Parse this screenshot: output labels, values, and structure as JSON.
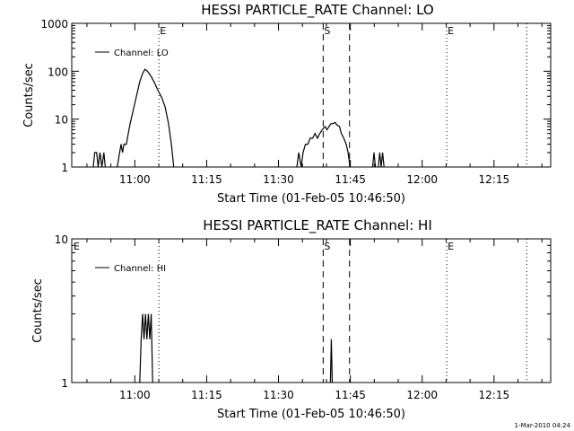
{
  "figure": {
    "timestamp": "1-Mar-2010 04:24"
  },
  "chart_data": [
    {
      "type": "line",
      "title": "HESSI PARTICLE_RATE Channel: LO",
      "xlabel": "Start Time (01-Feb-05 10:46:50)",
      "ylabel": "Counts/sec",
      "x_unit": "minutes after 10:46:50",
      "xlim": [
        0,
        100
      ],
      "ylim": [
        1,
        1000
      ],
      "yscale": "log",
      "x_ticks": [
        {
          "x": 13.17,
          "label": "11:00"
        },
        {
          "x": 28.17,
          "label": "11:15"
        },
        {
          "x": 43.17,
          "label": "11:30"
        },
        {
          "x": 58.17,
          "label": "11:45"
        },
        {
          "x": 73.17,
          "label": "12:00"
        },
        {
          "x": 88.17,
          "label": "12:15"
        }
      ],
      "y_ticks": [
        {
          "y": 1,
          "label": "1"
        },
        {
          "y": 10,
          "label": "10"
        },
        {
          "y": 100,
          "label": "100"
        },
        {
          "y": 1000,
          "label": "1000"
        }
      ],
      "legend": {
        "position": "top-left",
        "entries": [
          "Channel: LO"
        ]
      },
      "markers": [
        {
          "x": 18.2,
          "style": "dotted",
          "label": "E"
        },
        {
          "x": 52.5,
          "style": "dashed",
          "label": "S"
        },
        {
          "x": 58.0,
          "style": "dashed",
          "label": ""
        },
        {
          "x": 78.3,
          "style": "dotted",
          "label": "E"
        },
        {
          "x": 95.0,
          "style": "dotted",
          "label": ""
        }
      ],
      "series": [
        {
          "name": "Channel: LO",
          "segments": [
            [
              [
                4.5,
                1
              ],
              [
                4.8,
                2
              ],
              [
                5.2,
                2
              ],
              [
                5.5,
                1
              ],
              [
                5.9,
                2
              ],
              [
                6.3,
                1
              ],
              [
                6.7,
                2
              ],
              [
                7.0,
                1
              ]
            ],
            [
              [
                9.5,
                1
              ],
              [
                10.0,
                2
              ],
              [
                10.3,
                3
              ],
              [
                10.6,
                2
              ],
              [
                10.9,
                3
              ],
              [
                11.4,
                3
              ],
              [
                11.8,
                5
              ],
              [
                12.2,
                8
              ],
              [
                12.8,
                15
              ],
              [
                13.5,
                30
              ],
              [
                14.2,
                60
              ],
              [
                14.8,
                90
              ],
              [
                15.3,
                110
              ],
              [
                15.8,
                100
              ],
              [
                16.5,
                80
              ],
              [
                17.2,
                60
              ],
              [
                18.0,
                40
              ],
              [
                18.8,
                28
              ],
              [
                19.5,
                18
              ],
              [
                20.2,
                8
              ],
              [
                20.8,
                3
              ],
              [
                21.3,
                1
              ]
            ],
            [
              [
                47.0,
                1
              ],
              [
                47.4,
                2
              ],
              [
                47.9,
                1
              ],
              [
                48.3,
                2
              ],
              [
                48.8,
                3
              ],
              [
                49.3,
                3
              ],
              [
                49.8,
                4
              ],
              [
                50.3,
                4
              ],
              [
                50.8,
                5
              ],
              [
                51.3,
                4
              ],
              [
                51.8,
                5
              ],
              [
                52.3,
                6
              ],
              [
                52.9,
                7
              ],
              [
                53.3,
                6
              ],
              [
                53.7,
                7
              ],
              [
                54.1,
                8
              ],
              [
                54.5,
                8
              ],
              [
                55.0,
                8.5
              ],
              [
                55.4,
                7.5
              ],
              [
                55.9,
                7
              ],
              [
                56.3,
                5
              ],
              [
                56.8,
                4
              ],
              [
                57.3,
                3
              ],
              [
                57.7,
                2
              ],
              [
                58.1,
                1
              ]
            ],
            [
              [
                62.8,
                1
              ],
              [
                63.1,
                2
              ],
              [
                63.4,
                1
              ]
            ],
            [
              [
                64.0,
                1
              ],
              [
                64.3,
                2
              ],
              [
                64.6,
                1
              ],
              [
                64.9,
                2
              ],
              [
                65.2,
                1
              ]
            ]
          ]
        }
      ]
    },
    {
      "type": "line",
      "title": "HESSI PARTICLE_RATE Channel: HI",
      "xlabel": "Start Time (01-Feb-05 10:46:50)",
      "ylabel": "Counts/sec",
      "x_unit": "minutes after 10:46:50",
      "xlim": [
        0,
        100
      ],
      "ylim": [
        1,
        10
      ],
      "yscale": "log",
      "x_ticks": [
        {
          "x": 13.17,
          "label": "11:00"
        },
        {
          "x": 28.17,
          "label": "11:15"
        },
        {
          "x": 43.17,
          "label": "11:30"
        },
        {
          "x": 58.17,
          "label": "11:45"
        },
        {
          "x": 73.17,
          "label": "12:00"
        },
        {
          "x": 88.17,
          "label": "12:15"
        }
      ],
      "y_ticks": [
        {
          "y": 1,
          "label": "1"
        },
        {
          "y": 10,
          "label": "10"
        }
      ],
      "legend": {
        "position": "top-left",
        "entries": [
          "Channel: HI"
        ]
      },
      "markers": [
        {
          "x": 0,
          "style": "none",
          "label": "E"
        },
        {
          "x": 18.2,
          "style": "dotted",
          "label": ""
        },
        {
          "x": 52.5,
          "style": "dashed",
          "label": "S"
        },
        {
          "x": 58.0,
          "style": "dashed",
          "label": ""
        },
        {
          "x": 78.3,
          "style": "dotted",
          "label": "E"
        },
        {
          "x": 95.0,
          "style": "dotted",
          "label": ""
        }
      ],
      "series": [
        {
          "name": "Channel: HI",
          "segments": [
            [
              [
                14.2,
                1
              ],
              [
                14.5,
                2
              ],
              [
                14.8,
                3
              ],
              [
                15.1,
                2
              ],
              [
                15.4,
                3
              ],
              [
                15.7,
                2
              ],
              [
                16.0,
                3
              ],
              [
                16.3,
                2
              ],
              [
                16.6,
                3
              ],
              [
                16.9,
                1
              ]
            ],
            [
              [
                54.0,
                1
              ],
              [
                54.2,
                2
              ],
              [
                54.4,
                1
              ]
            ]
          ]
        }
      ]
    }
  ]
}
